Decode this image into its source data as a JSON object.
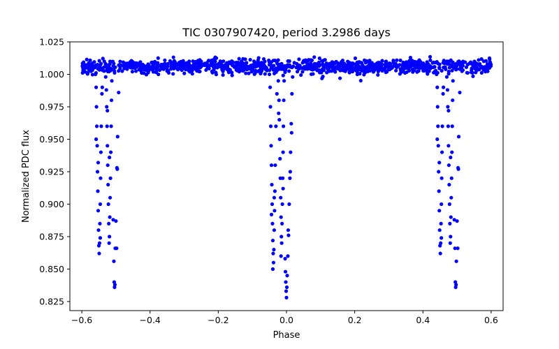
{
  "chart_data": {
    "type": "scatter",
    "title": "TIC 0307907420, period 3.2986 days",
    "xlabel": "Phase",
    "ylabel": "Normalized PDC flux",
    "xlim": [
      -0.635,
      0.635
    ],
    "ylim": [
      0.818,
      1.025
    ],
    "xticks": [
      -0.6,
      -0.4,
      -0.2,
      0.0,
      0.2,
      0.4,
      0.6
    ],
    "xtick_labels": [
      "−0.6",
      "−0.4",
      "−0.2",
      "0.0",
      "0.2",
      "0.4",
      "0.6"
    ],
    "yticks": [
      0.825,
      0.85,
      0.875,
      0.9,
      0.925,
      0.95,
      0.975,
      1.0,
      1.025
    ],
    "ytick_labels": [
      "0.825",
      "0.850",
      "0.875",
      "0.900",
      "0.925",
      "0.950",
      "0.975",
      "1.000",
      "1.025"
    ],
    "grid": false,
    "marker_color": "#0000ff",
    "series": [
      {
        "name": "",
        "baseline": {
          "x_range": [
            -0.6,
            0.6
          ],
          "flux_center": 1.006,
          "flux_spread": 0.006,
          "points": 1400
        },
        "eclipses": [
          {
            "phase_center": -0.51,
            "points": [
              [
                -0.56,
                1.0
              ],
              [
                -0.558,
                0.99
              ],
              [
                -0.557,
                0.975
              ],
              [
                -0.556,
                0.96
              ],
              [
                -0.555,
                0.945
              ],
              [
                -0.554,
                0.925
              ],
              [
                -0.553,
                0.91
              ],
              [
                -0.552,
                0.895
              ],
              [
                -0.551,
                0.88
              ],
              [
                -0.55,
                0.868
              ],
              [
                -0.549,
                0.862
              ],
              [
                -0.548,
                0.87
              ],
              [
                -0.547,
                0.885
              ],
              [
                -0.546,
                0.9
              ],
              [
                -0.545,
                0.92
              ],
              [
                -0.544,
                0.94
              ],
              [
                -0.543,
                0.96
              ],
              [
                -0.541,
                0.985
              ],
              [
                -0.53,
                0.998
              ],
              [
                -0.528,
                0.988
              ],
              [
                -0.527,
                0.975
              ],
              [
                -0.526,
                0.96
              ],
              [
                -0.525,
                0.945
              ],
              [
                -0.524,
                0.93
              ],
              [
                -0.523,
                0.915
              ],
              [
                -0.522,
                0.9
              ],
              [
                -0.521,
                0.885
              ],
              [
                -0.52,
                0.87
              ],
              [
                -0.519,
                0.875
              ],
              [
                -0.518,
                0.89
              ],
              [
                -0.517,
                0.905
              ],
              [
                -0.516,
                0.92
              ],
              [
                -0.515,
                0.94
              ],
              [
                -0.514,
                0.96
              ],
              [
                -0.513,
                0.98
              ],
              [
                -0.512,
                0.995
              ],
              [
                -0.508,
                0.888
              ],
              [
                -0.506,
                0.856
              ],
              [
                -0.505,
                0.84
              ],
              [
                -0.504,
                0.836
              ],
              [
                -0.503,
                0.838
              ],
              [
                -0.502,
                0.866
              ],
              [
                -0.5,
                0.887
              ],
              [
                -0.497,
                0.928
              ],
              [
                -0.495,
                0.952
              ],
              [
                -0.492,
                0.986
              ],
              [
                -0.558,
                0.95
              ],
              [
                -0.552,
                0.932
              ],
              [
                -0.546,
                0.874
              ],
              [
                -0.54,
                0.99
              ],
              [
                -0.525,
                0.972
              ],
              [
                -0.519,
                0.936
              ],
              [
                -0.498,
                0.866
              ],
              [
                -0.496,
                0.927
              ]
            ]
          },
          {
            "phase_center": 0.0,
            "points": [
              [
                -0.05,
                1.0
              ],
              [
                -0.048,
                0.99
              ],
              [
                -0.047,
                0.975
              ],
              [
                -0.046,
                0.96
              ],
              [
                -0.045,
                0.945
              ],
              [
                -0.044,
                0.93
              ],
              [
                -0.043,
                0.915
              ],
              [
                -0.042,
                0.9
              ],
              [
                -0.041,
                0.885
              ],
              [
                -0.04,
                0.872
              ],
              [
                -0.039,
                0.862
              ],
              [
                -0.038,
                0.855
              ],
              [
                -0.037,
                0.865
              ],
              [
                -0.036,
                0.88
              ],
              [
                -0.035,
                0.895
              ],
              [
                -0.034,
                0.91
              ],
              [
                -0.033,
                0.93
              ],
              [
                -0.031,
                0.96
              ],
              [
                -0.028,
                0.985
              ],
              [
                -0.024,
                0.995
              ],
              [
                -0.022,
                0.98
              ],
              [
                -0.021,
                0.965
              ],
              [
                -0.02,
                0.95
              ],
              [
                -0.019,
                0.935
              ],
              [
                -0.018,
                0.92
              ],
              [
                -0.017,
                0.905
              ],
              [
                -0.016,
                0.89
              ],
              [
                -0.015,
                0.875
              ],
              [
                -0.014,
                0.87
              ],
              [
                -0.013,
                0.885
              ],
              [
                -0.012,
                0.9
              ],
              [
                -0.011,
                0.92
              ],
              [
                -0.01,
                0.94
              ],
              [
                -0.009,
                0.96
              ],
              [
                -0.008,
                0.98
              ],
              [
                -0.007,
                0.995
              ],
              [
                -0.004,
                0.858
              ],
              [
                -0.003,
                0.848
              ],
              [
                -0.002,
                0.84
              ],
              [
                -0.001,
                0.833
              ],
              [
                0.0,
                0.828
              ],
              [
                0.001,
                0.836
              ],
              [
                0.002,
                0.845
              ],
              [
                0.004,
                0.86
              ],
              [
                0.006,
                0.876
              ],
              [
                0.008,
                0.9
              ],
              [
                0.01,
                0.92
              ],
              [
                0.012,
                0.94
              ],
              [
                0.014,
                0.962
              ],
              [
                0.016,
                0.985
              ],
              [
                0.018,
                0.998
              ],
              [
                -0.044,
                0.892
              ],
              [
                -0.04,
                0.85
              ],
              [
                -0.036,
                0.905
              ],
              [
                -0.023,
                0.97
              ],
              [
                -0.016,
                0.86
              ],
              [
                -0.01,
                0.912
              ],
              [
                0.005,
                0.88
              ],
              [
                0.011,
                0.925
              ],
              [
                0.015,
                0.955
              ]
            ]
          },
          {
            "phase_center": 0.49,
            "points": [
              [
                0.44,
                1.0
              ],
              [
                0.442,
                0.99
              ],
              [
                0.443,
                0.975
              ],
              [
                0.444,
                0.96
              ],
              [
                0.445,
                0.945
              ],
              [
                0.446,
                0.925
              ],
              [
                0.447,
                0.91
              ],
              [
                0.448,
                0.895
              ],
              [
                0.449,
                0.88
              ],
              [
                0.45,
                0.868
              ],
              [
                0.451,
                0.862
              ],
              [
                0.452,
                0.87
              ],
              [
                0.453,
                0.885
              ],
              [
                0.454,
                0.9
              ],
              [
                0.455,
                0.92
              ],
              [
                0.456,
                0.94
              ],
              [
                0.457,
                0.96
              ],
              [
                0.459,
                0.985
              ],
              [
                0.47,
                0.998
              ],
              [
                0.472,
                0.988
              ],
              [
                0.473,
                0.975
              ],
              [
                0.474,
                0.96
              ],
              [
                0.475,
                0.945
              ],
              [
                0.476,
                0.93
              ],
              [
                0.477,
                0.915
              ],
              [
                0.478,
                0.9
              ],
              [
                0.479,
                0.885
              ],
              [
                0.48,
                0.87
              ],
              [
                0.481,
                0.875
              ],
              [
                0.482,
                0.89
              ],
              [
                0.483,
                0.905
              ],
              [
                0.484,
                0.92
              ],
              [
                0.485,
                0.94
              ],
              [
                0.486,
                0.96
              ],
              [
                0.487,
                0.98
              ],
              [
                0.488,
                0.995
              ],
              [
                0.492,
                0.888
              ],
              [
                0.494,
                0.866
              ],
              [
                0.495,
                0.84
              ],
              [
                0.496,
                0.836
              ],
              [
                0.497,
                0.838
              ],
              [
                0.498,
                0.856
              ],
              [
                0.5,
                0.887
              ],
              [
                0.503,
                0.928
              ],
              [
                0.505,
                0.952
              ],
              [
                0.508,
                0.986
              ],
              [
                0.442,
                0.95
              ],
              [
                0.448,
                0.932
              ],
              [
                0.454,
                0.874
              ],
              [
                0.46,
                0.99
              ],
              [
                0.475,
                0.972
              ],
              [
                0.481,
                0.936
              ],
              [
                0.502,
                0.866
              ],
              [
                0.504,
                0.927
              ]
            ]
          }
        ]
      }
    ]
  }
}
